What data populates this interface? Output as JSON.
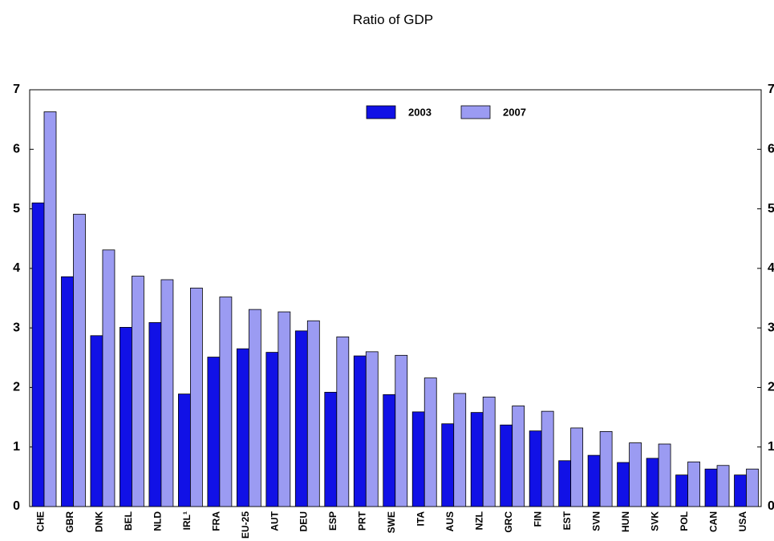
{
  "chart_data": {
    "type": "bar",
    "title": "Ratio of GDP",
    "categories": [
      "CHE",
      "GBR",
      "DNK",
      "BEL",
      "NLD",
      "IRL¹",
      "FRA",
      "EU-25",
      "AUT",
      "DEU",
      "ESP",
      "PRT",
      "SWE",
      "ITA",
      "AUS",
      "NZL",
      "GRC",
      "FIN",
      "EST",
      "SVN",
      "HUN",
      "SVK",
      "POL",
      "CAN",
      "USA"
    ],
    "series": [
      {
        "name": "2003",
        "color": "#1111e6",
        "values": [
          5.1,
          3.86,
          2.87,
          3.01,
          3.09,
          1.89,
          2.51,
          2.65,
          2.59,
          2.95,
          1.92,
          2.53,
          1.88,
          1.59,
          1.39,
          1.58,
          1.37,
          1.27,
          0.77,
          0.86,
          0.74,
          0.81,
          0.53,
          0.63,
          0.53
        ]
      },
      {
        "name": "2007",
        "color": "#9b9bf2",
        "values": [
          6.63,
          4.91,
          4.31,
          3.87,
          3.81,
          3.67,
          3.52,
          3.31,
          3.27,
          3.12,
          2.85,
          2.6,
          2.54,
          2.16,
          1.9,
          1.84,
          1.69,
          1.6,
          1.32,
          1.26,
          1.07,
          1.05,
          0.75,
          0.69,
          0.63
        ]
      }
    ],
    "ylim": [
      0,
      7
    ],
    "yticks": [
      0,
      1,
      2,
      3,
      4,
      5,
      6,
      7
    ],
    "legend": "top-center"
  }
}
